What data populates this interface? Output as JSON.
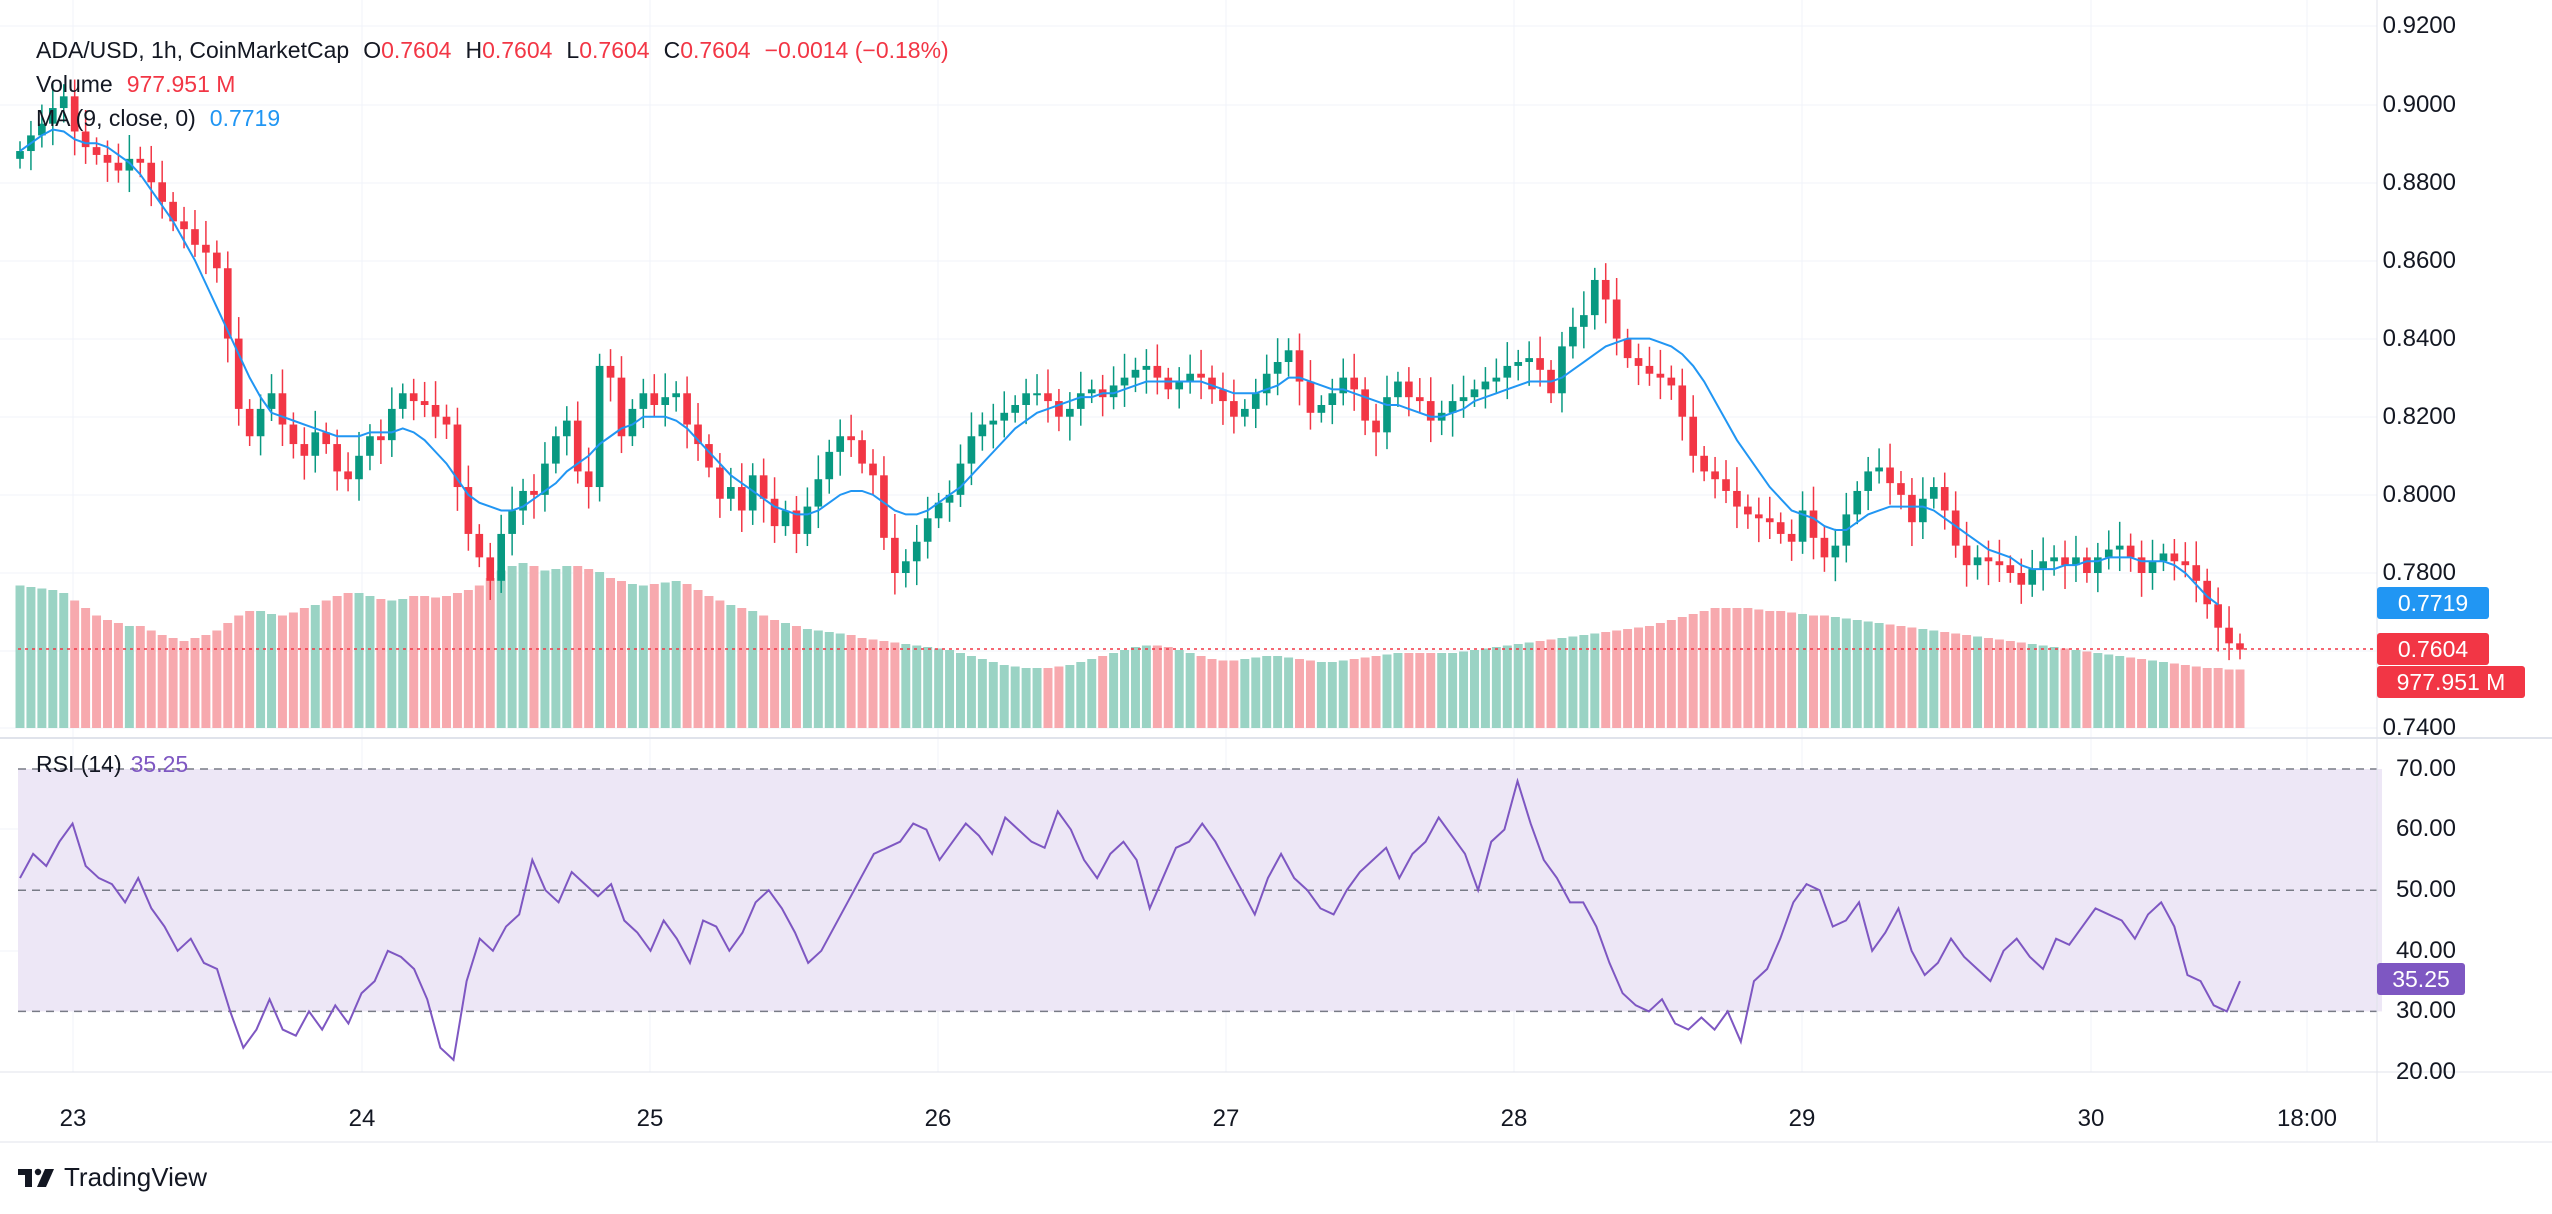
{
  "header": {
    "symbol": "ADA/USD, 1h, CoinMarketCap",
    "o_label": "O",
    "o_value": "0.7604",
    "h_label": "H",
    "h_value": "0.7604",
    "l_label": "L",
    "l_value": "0.7604",
    "c_label": "C",
    "c_value": "0.7604",
    "change": "−0.0014 (−0.18%)"
  },
  "volume": {
    "label": "Volume",
    "value": "977.951 M"
  },
  "ma": {
    "label": "MA (9, close, 0)",
    "value": "0.7719"
  },
  "rsi": {
    "label": "RSI (14)",
    "value": "35.25"
  },
  "price_axis": [
    "0.9200",
    "0.9000",
    "0.8800",
    "0.8600",
    "0.8400",
    "0.8200",
    "0.8000",
    "0.7800",
    "0.7400"
  ],
  "rsi_axis": [
    "70.00",
    "60.00",
    "50.00",
    "40.00",
    "30.00",
    "20.00"
  ],
  "time_axis": [
    "23",
    "24",
    "25",
    "26",
    "27",
    "28",
    "29",
    "30",
    "18:00"
  ],
  "tags": {
    "ma": "0.7719",
    "price": "0.7604",
    "volume": "977.951 M",
    "rsi": "35.25"
  },
  "branding": {
    "name": "TradingView"
  },
  "colors": {
    "up": "#089981",
    "down": "#f23645",
    "vol_up": "#9ad3c4",
    "vol_down": "#f7a9ae",
    "ma": "#2196f3",
    "rsi": "#7e57c2",
    "rsi_band": "#ede7f6"
  },
  "chart_data": [
    {
      "type": "candlestick",
      "title": "ADA/USD, 1h, CoinMarketCap",
      "x_range": [
        "22 19:00",
        "30 17:00"
      ],
      "ylim": [
        0.74,
        0.92
      ],
      "x_ticks": [
        "23",
        "24",
        "25",
        "26",
        "27",
        "28",
        "29",
        "30",
        "18:00"
      ],
      "y_ticks": [
        0.92,
        0.9,
        0.88,
        0.86,
        0.84,
        0.82,
        0.8,
        0.78,
        0.74
      ],
      "close": [
        0.888,
        0.892,
        0.895,
        0.899,
        0.902,
        0.893,
        0.889,
        0.887,
        0.885,
        0.883,
        0.886,
        0.885,
        0.88,
        0.875,
        0.87,
        0.868,
        0.864,
        0.862,
        0.858,
        0.84,
        0.822,
        0.815,
        0.822,
        0.826,
        0.818,
        0.813,
        0.81,
        0.816,
        0.813,
        0.806,
        0.804,
        0.81,
        0.815,
        0.814,
        0.822,
        0.826,
        0.824,
        0.823,
        0.82,
        0.818,
        0.802,
        0.79,
        0.784,
        0.778,
        0.79,
        0.796,
        0.801,
        0.8,
        0.808,
        0.815,
        0.819,
        0.806,
        0.802,
        0.833,
        0.83,
        0.815,
        0.822,
        0.826,
        0.823,
        0.825,
        0.826,
        0.818,
        0.813,
        0.807,
        0.799,
        0.802,
        0.796,
        0.805,
        0.799,
        0.792,
        0.796,
        0.79,
        0.797,
        0.804,
        0.811,
        0.815,
        0.814,
        0.808,
        0.805,
        0.789,
        0.78,
        0.783,
        0.788,
        0.794,
        0.798,
        0.8,
        0.808,
        0.815,
        0.818,
        0.819,
        0.821,
        0.823,
        0.826,
        0.826,
        0.824,
        0.82,
        0.822,
        0.826,
        0.827,
        0.825,
        0.828,
        0.83,
        0.832,
        0.833,
        0.83,
        0.827,
        0.829,
        0.831,
        0.83,
        0.827,
        0.824,
        0.82,
        0.822,
        0.826,
        0.831,
        0.834,
        0.837,
        0.829,
        0.821,
        0.823,
        0.826,
        0.83,
        0.827,
        0.819,
        0.816,
        0.825,
        0.829,
        0.825,
        0.824,
        0.819,
        0.821,
        0.824,
        0.825,
        0.827,
        0.829,
        0.83,
        0.833,
        0.834,
        0.835,
        0.832,
        0.826,
        0.838,
        0.843,
        0.846,
        0.855,
        0.85,
        0.84,
        0.835,
        0.833,
        0.831,
        0.83,
        0.828,
        0.82,
        0.81,
        0.806,
        0.804,
        0.801,
        0.797,
        0.795,
        0.794,
        0.793,
        0.79,
        0.788,
        0.796,
        0.789,
        0.784,
        0.787,
        0.795,
        0.801,
        0.806,
        0.807,
        0.803,
        0.8,
        0.793,
        0.799,
        0.802,
        0.796,
        0.787,
        0.782,
        0.784,
        0.783,
        0.782,
        0.78,
        0.777,
        0.781,
        0.783,
        0.784,
        0.782,
        0.784,
        0.78,
        0.784,
        0.786,
        0.787,
        0.784,
        0.78,
        0.783,
        0.785,
        0.783,
        0.782,
        0.778,
        0.772,
        0.766,
        0.762,
        0.7604
      ],
      "ma_9": [
        0.888,
        0.89,
        0.892,
        0.8935,
        0.893,
        0.891,
        0.89,
        0.89,
        0.889,
        0.887,
        0.885,
        0.882,
        0.878,
        0.874,
        0.87,
        0.865,
        0.86,
        0.854,
        0.848,
        0.842,
        0.836,
        0.83,
        0.825,
        0.821,
        0.82,
        0.819,
        0.818,
        0.817,
        0.816,
        0.815,
        0.815,
        0.815,
        0.816,
        0.816,
        0.816,
        0.817,
        0.816,
        0.814,
        0.811,
        0.808,
        0.804,
        0.8,
        0.798,
        0.797,
        0.796,
        0.796,
        0.797,
        0.799,
        0.801,
        0.803,
        0.806,
        0.808,
        0.81,
        0.813,
        0.815,
        0.817,
        0.818,
        0.82,
        0.82,
        0.82,
        0.819,
        0.817,
        0.814,
        0.811,
        0.808,
        0.805,
        0.803,
        0.801,
        0.799,
        0.797,
        0.796,
        0.795,
        0.795,
        0.796,
        0.798,
        0.8,
        0.801,
        0.801,
        0.8,
        0.798,
        0.796,
        0.795,
        0.795,
        0.796,
        0.798,
        0.8,
        0.802,
        0.805,
        0.808,
        0.811,
        0.814,
        0.817,
        0.819,
        0.821,
        0.822,
        0.823,
        0.824,
        0.825,
        0.825,
        0.826,
        0.826,
        0.827,
        0.828,
        0.829,
        0.829,
        0.829,
        0.829,
        0.829,
        0.829,
        0.828,
        0.827,
        0.826,
        0.826,
        0.826,
        0.827,
        0.828,
        0.83,
        0.83,
        0.829,
        0.828,
        0.827,
        0.827,
        0.826,
        0.825,
        0.824,
        0.823,
        0.823,
        0.822,
        0.821,
        0.82,
        0.82,
        0.821,
        0.822,
        0.824,
        0.825,
        0.826,
        0.827,
        0.828,
        0.829,
        0.829,
        0.829,
        0.83,
        0.832,
        0.834,
        0.836,
        0.838,
        0.839,
        0.84,
        0.84,
        0.84,
        0.839,
        0.838,
        0.836,
        0.833,
        0.829,
        0.824,
        0.819,
        0.814,
        0.81,
        0.806,
        0.802,
        0.799,
        0.796,
        0.795,
        0.794,
        0.792,
        0.791,
        0.791,
        0.793,
        0.795,
        0.796,
        0.797,
        0.797,
        0.797,
        0.797,
        0.796,
        0.794,
        0.792,
        0.79,
        0.788,
        0.786,
        0.785,
        0.784,
        0.782,
        0.781,
        0.781,
        0.781,
        0.782,
        0.782,
        0.783,
        0.783,
        0.784,
        0.784,
        0.784,
        0.783,
        0.783,
        0.783,
        0.782,
        0.78,
        0.777,
        0.774,
        0.7719
      ]
    },
    {
      "type": "bar",
      "title": "Volume",
      "x_range": [
        "22 19:00",
        "30 17:00"
      ],
      "last_value": 977.951,
      "unit": "M",
      "relative_levels": [
        0.95,
        0.94,
        0.93,
        0.92,
        0.9,
        0.85,
        0.8,
        0.75,
        0.72,
        0.7,
        0.68,
        0.68,
        0.65,
        0.62,
        0.6,
        0.58,
        0.6,
        0.62,
        0.65,
        0.7,
        0.75,
        0.78,
        0.78,
        0.76,
        0.75,
        0.77,
        0.8,
        0.82,
        0.85,
        0.88,
        0.9,
        0.9,
        0.88,
        0.86,
        0.85,
        0.86,
        0.88,
        0.88,
        0.87,
        0.88,
        0.9,
        0.92,
        0.95,
        1.0,
        1.05,
        1.08,
        1.1,
        1.08,
        1.05,
        1.06,
        1.08,
        1.08,
        1.06,
        1.04,
        1.0,
        0.98,
        0.96,
        0.95,
        0.96,
        0.97,
        0.98,
        0.96,
        0.92,
        0.88,
        0.85,
        0.82,
        0.8,
        0.78,
        0.75,
        0.72,
        0.7,
        0.68,
        0.66,
        0.65,
        0.64,
        0.63,
        0.62,
        0.6,
        0.59,
        0.58,
        0.57,
        0.56,
        0.55,
        0.54,
        0.53,
        0.52,
        0.5,
        0.48,
        0.46,
        0.44,
        0.42,
        0.41,
        0.4,
        0.4,
        0.4,
        0.41,
        0.42,
        0.44,
        0.46,
        0.48,
        0.5,
        0.52,
        0.54,
        0.55,
        0.55,
        0.54,
        0.52,
        0.5,
        0.48,
        0.46,
        0.45,
        0.45,
        0.46,
        0.47,
        0.48,
        0.48,
        0.47,
        0.46,
        0.45,
        0.44,
        0.44,
        0.45,
        0.46,
        0.47,
        0.48,
        0.49,
        0.5,
        0.5,
        0.5,
        0.5,
        0.5,
        0.5,
        0.51,
        0.52,
        0.53,
        0.54,
        0.55,
        0.56,
        0.57,
        0.58,
        0.59,
        0.6,
        0.61,
        0.62,
        0.63,
        0.64,
        0.65,
        0.66,
        0.67,
        0.68,
        0.7,
        0.72,
        0.74,
        0.76,
        0.78,
        0.8,
        0.8,
        0.8,
        0.8,
        0.79,
        0.78,
        0.78,
        0.77,
        0.76,
        0.75,
        0.75,
        0.74,
        0.73,
        0.72,
        0.71,
        0.7,
        0.69,
        0.68,
        0.67,
        0.66,
        0.65,
        0.64,
        0.63,
        0.62,
        0.61,
        0.6,
        0.59,
        0.58,
        0.57,
        0.56,
        0.55,
        0.54,
        0.53,
        0.52,
        0.51,
        0.5,
        0.49,
        0.48,
        0.47,
        0.46,
        0.45,
        0.44,
        0.43,
        0.42,
        0.41,
        0.4,
        0.4,
        0.39
      ]
    },
    {
      "type": "line",
      "title": "RSI (14)",
      "x_range": [
        "22 19:00",
        "30 17:00"
      ],
      "ylim": [
        17,
        72
      ],
      "y_ticks": [
        70,
        60,
        50,
        40,
        30,
        20
      ],
      "bands": [
        30,
        50,
        70
      ],
      "values": [
        52,
        56,
        54,
        58,
        61,
        54,
        52,
        51,
        48,
        52,
        47,
        44,
        40,
        42,
        38,
        37,
        30,
        24,
        27,
        32,
        27,
        26,
        30,
        27,
        31,
        28,
        33,
        35,
        40,
        39,
        37,
        32,
        24,
        22,
        35,
        42,
        40,
        44,
        46,
        55,
        50,
        48,
        53,
        51,
        49,
        51,
        45,
        43,
        40,
        45,
        42,
        38,
        45,
        44,
        40,
        43,
        48,
        50,
        47,
        43,
        38,
        40,
        44,
        48,
        52,
        56,
        57,
        58,
        61,
        60,
        55,
        58,
        61,
        59,
        56,
        62,
        60,
        58,
        57,
        63,
        60,
        55,
        52,
        56,
        58,
        55,
        47,
        52,
        57,
        58,
        61,
        58,
        54,
        50,
        46,
        52,
        56,
        52,
        50,
        47,
        46,
        50,
        53,
        55,
        57,
        52,
        56,
        58,
        62,
        59,
        56,
        50,
        58,
        60,
        68,
        61,
        55,
        52,
        48,
        48,
        44,
        38,
        33,
        31,
        30,
        32,
        28,
        27,
        29,
        27,
        30,
        25,
        35,
        37,
        42,
        48,
        51,
        50,
        44,
        45,
        48,
        40,
        43,
        47,
        40,
        36,
        38,
        42,
        39,
        37,
        35,
        40,
        42,
        39,
        37,
        42,
        41,
        44,
        47,
        46,
        45,
        42,
        46,
        48,
        44,
        36,
        35,
        31,
        30,
        35
      ],
      "last_value": 35.25
    }
  ]
}
